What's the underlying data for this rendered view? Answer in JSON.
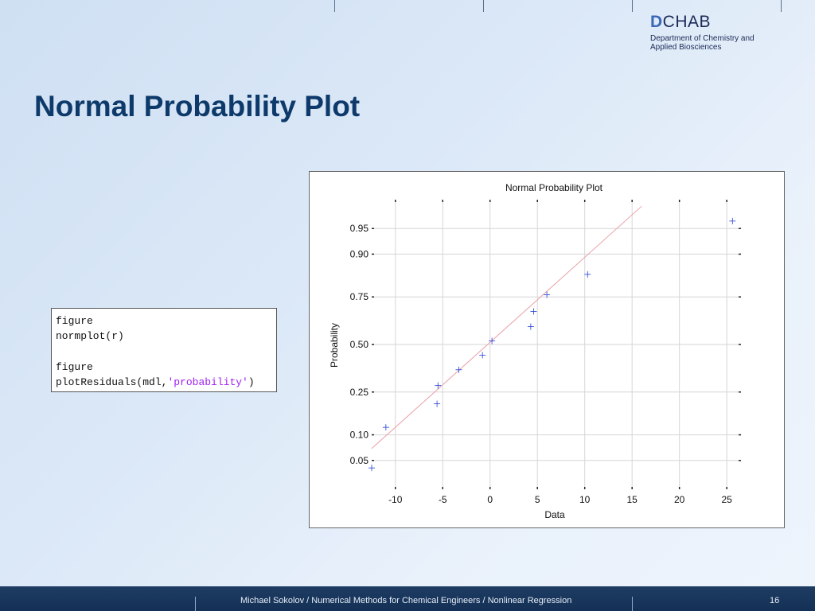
{
  "logo": {
    "mark_d": "D",
    "mark_rest": "CHAB",
    "line1": "Department of Chemistry and",
    "line2": "Applied Biosciences"
  },
  "slide": {
    "title": "Normal Probability Plot"
  },
  "code": {
    "lines": [
      {
        "text": "figure"
      },
      {
        "text": "normplot(r)"
      },
      {
        "text": ""
      },
      {
        "text": "figure"
      },
      {
        "text": "plotResiduals(mdl,",
        "string": "'probability'",
        "suffix": ")"
      }
    ]
  },
  "chart_data": {
    "type": "scatter",
    "title": "Normal Probability Plot",
    "xlabel": "Data",
    "ylabel": "Probability",
    "x_ticks": [
      -10,
      -5,
      0,
      5,
      10,
      15,
      20,
      25
    ],
    "x_tick_labels": [
      "-10",
      "-5",
      "0",
      "5",
      "10",
      "15",
      "20",
      "25"
    ],
    "y_ticks": [
      0.05,
      0.1,
      0.25,
      0.5,
      0.75,
      0.9,
      0.95
    ],
    "y_tick_labels": [
      "0.05",
      "0.10",
      "0.25",
      "0.50",
      "0.75",
      "0.90",
      "0.95"
    ],
    "xlim": [
      -12.5,
      26.5
    ],
    "ylim": [
      0.02,
      0.98
    ],
    "grid": true,
    "series": [
      {
        "x": [
          -12.5,
          -11,
          -5.6,
          -5.5,
          -3.3,
          -0.8,
          0.2,
          4.3,
          4.6,
          6,
          10.3,
          25.6
        ],
        "y": [
          0.04,
          0.12,
          0.2,
          0.28,
          0.36,
          0.44,
          0.52,
          0.6,
          0.68,
          0.76,
          0.84,
          0.96
        ],
        "color": "#1f3fd6"
      }
    ],
    "reference_line": {
      "x": [
        -12.5,
        16
      ],
      "y": [
        0.07,
        0.975
      ],
      "color": "#e8a0a8"
    }
  },
  "footer": {
    "text": "Michael Sokolov / Numerical Methods for Chemical Engineers / Nonlinear Regression",
    "page": "16"
  },
  "colors": {
    "title": "#0e3a6b",
    "footer_bg": "#1e3c63",
    "code_string": "#a020f0"
  }
}
